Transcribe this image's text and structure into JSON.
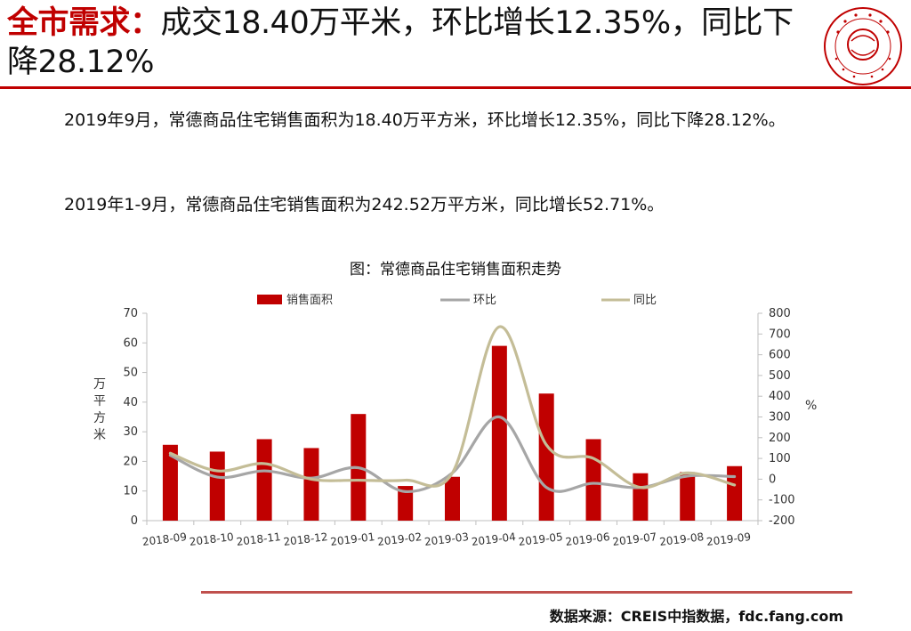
{
  "headline": {
    "highlight": "全市需求：",
    "rest": "成交18.40万平米，环比增长12.35%，同比下降28.12%"
  },
  "logo": {
    "icon": "china-index-academy-seal-icon",
    "color": "#c00000"
  },
  "paragraphs": [
    "2019年9月，常德商品住宅销售面积为18.40万平方米，环比增长12.35%，同比下降28.12%。",
    "2019年1-9月，常德商品住宅销售面积为242.52万平方米，同比增长52.71%。"
  ],
  "chart_data": {
    "type": "bar",
    "title": "图：常德商品住宅销售面积走势",
    "categories": [
      "2018-09",
      "2018-10",
      "2018-11",
      "2018-12",
      "2019-01",
      "2019-02",
      "2019-03",
      "2019-04",
      "2019-05",
      "2019-06",
      "2019-07",
      "2019-08",
      "2019-09"
    ],
    "series": [
      {
        "name": "销售面积",
        "type": "bar",
        "axis": "left",
        "color": "#c00000",
        "values": [
          25.6,
          23.3,
          27.5,
          24.5,
          36.0,
          11.7,
          14.8,
          59.0,
          42.9,
          27.5,
          16.0,
          16.4,
          18.4
        ]
      },
      {
        "name": "环比",
        "type": "line",
        "axis": "right",
        "color": "#a6a6a6",
        "values": [
          115,
          10,
          40,
          5,
          55,
          -60,
          30,
          300,
          -40,
          -20,
          -40,
          15,
          12.35
        ]
      },
      {
        "name": "同比",
        "type": "line",
        "axis": "right",
        "color": "#c4bd97",
        "values": [
          125,
          40,
          75,
          0,
          -5,
          -5,
          30,
          735,
          165,
          100,
          -40,
          30,
          -28.12
        ]
      }
    ],
    "ylabel": "万平方米",
    "ylim": [
      0,
      70
    ],
    "yticks": [
      0,
      10,
      20,
      30,
      40,
      50,
      60,
      70
    ],
    "y2label": "%",
    "y2lim": [
      -200,
      800
    ],
    "y2ticks": [
      -200,
      -100,
      0,
      100,
      200,
      300,
      400,
      500,
      600,
      700,
      800
    ],
    "legend_position": "top",
    "grid": false
  },
  "source": "数据来源：CREIS中指数据，fdc.fang.com"
}
